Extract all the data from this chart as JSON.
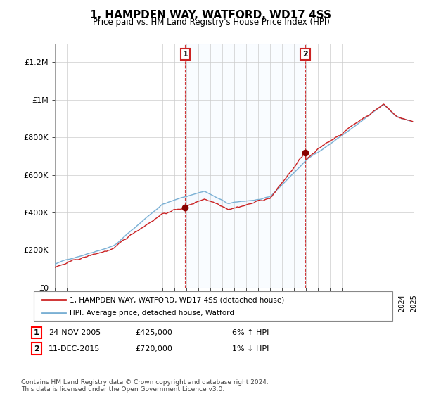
{
  "title": "1, HAMPDEN WAY, WATFORD, WD17 4SS",
  "subtitle": "Price paid vs. HM Land Registry's House Price Index (HPI)",
  "legend_entry1": "1, HAMPDEN WAY, WATFORD, WD17 4SS (detached house)",
  "legend_entry2": "HPI: Average price, detached house, Watford",
  "annotation1_date": "24-NOV-2005",
  "annotation1_price": "£425,000",
  "annotation1_hpi": "6% ↑ HPI",
  "annotation2_date": "11-DEC-2015",
  "annotation2_price": "£720,000",
  "annotation2_hpi": "1% ↓ HPI",
  "footer": "Contains HM Land Registry data © Crown copyright and database right 2024.\nThis data is licensed under the Open Government Licence v3.0.",
  "sale1_year": 2005.9,
  "sale1_value": 425000,
  "sale2_year": 2015.95,
  "sale2_value": 720000,
  "hpi_color": "#7ab0d4",
  "price_color": "#cc2222",
  "shade_color": "#ddeeff",
  "vline_color": "#cc2222",
  "ylim": [
    0,
    1300000
  ],
  "yticks": [
    0,
    200000,
    400000,
    600000,
    800000,
    1000000,
    1200000
  ],
  "ytick_labels": [
    "£0",
    "£200K",
    "£400K",
    "£600K",
    "£800K",
    "£1M",
    "£1.2M"
  ],
  "xmin": 1995.0,
  "xmax": 2025.0,
  "background_color": "#ffffff"
}
